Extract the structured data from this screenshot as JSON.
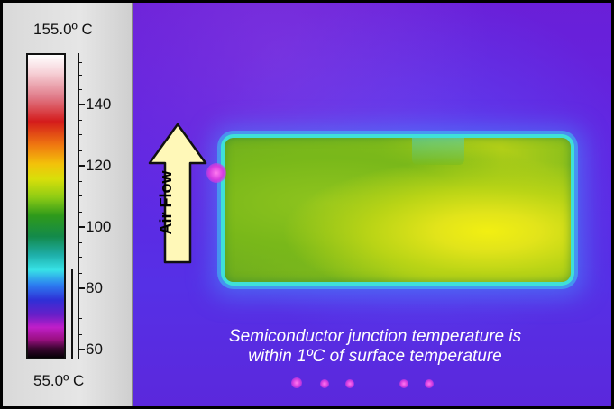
{
  "scale": {
    "max_label": "155.0º C",
    "min_label": "55.0º C",
    "ticks": [
      "140",
      "120",
      "100",
      "80",
      "60"
    ]
  },
  "image": {
    "arrow_label": "Air Flow",
    "caption_line1": "Semiconductor junction temperature is",
    "caption_line2": "within 1ºC of surface temperature"
  },
  "colors": {
    "background": "#5b2ae0",
    "board_hot": "#f2ef12",
    "board_warm": "#83bc1c",
    "board_edge": "#3fe0d8",
    "arrow_fill": "#fff8b8"
  }
}
